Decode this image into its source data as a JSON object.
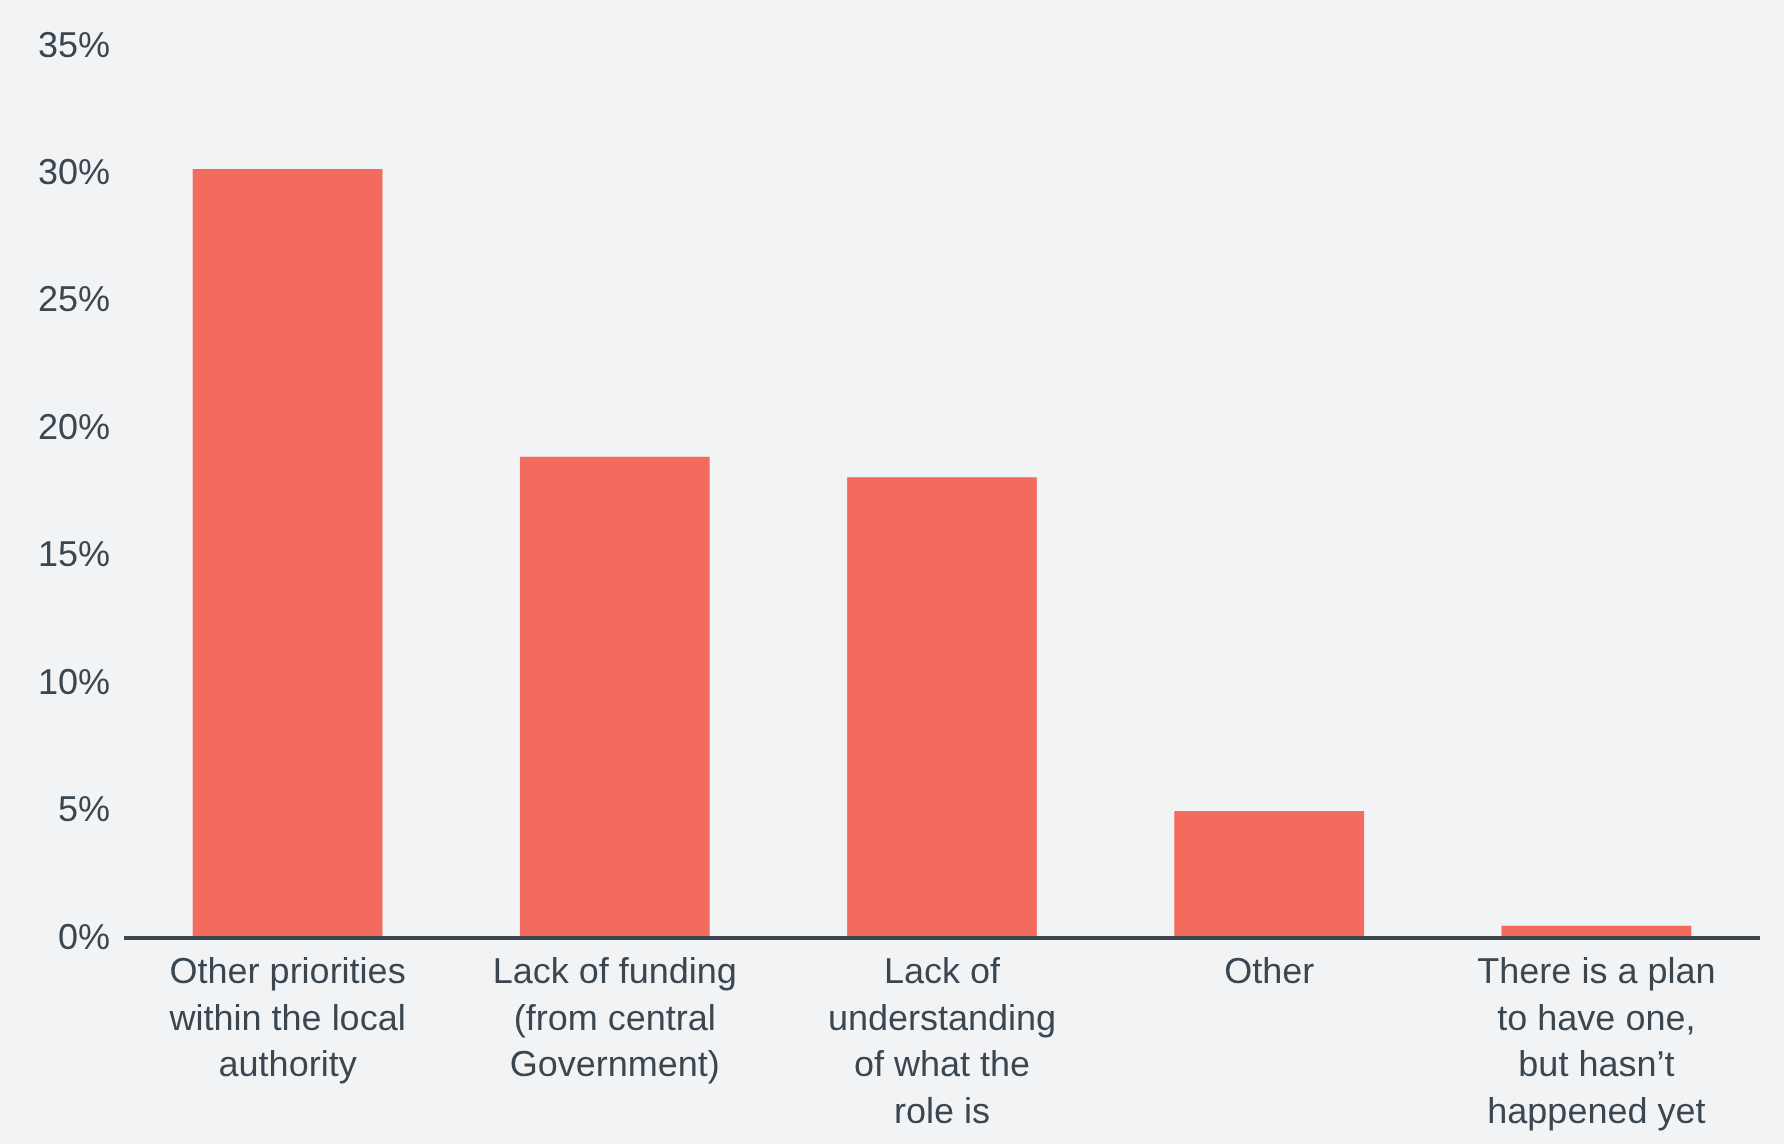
{
  "chart_data": {
    "type": "bar",
    "categories": [
      "Other priorities\nwithin the local\nauthority",
      "Lack of funding\n(from central\nGovernment)",
      "Lack of\nunderstanding\nof what the\nrole is",
      "Other",
      "There is a plan\nto have one,\nbut hasn’t\nhappened yet"
    ],
    "values": [
      30.1,
      18.8,
      18.0,
      4.9,
      0.4
    ],
    "color": "#f26b5d",
    "ylim": [
      0,
      35
    ],
    "yticks": [
      {
        "value": 0,
        "label": "0%"
      },
      {
        "value": 5,
        "label": "5%"
      },
      {
        "value": 10,
        "label": "10%"
      },
      {
        "value": 15,
        "label": "15%"
      },
      {
        "value": 20,
        "label": "20%"
      },
      {
        "value": 25,
        "label": "25%"
      },
      {
        "value": 30,
        "label": "30%"
      },
      {
        "value": 35,
        "label": "35%"
      }
    ],
    "grid": false
  }
}
